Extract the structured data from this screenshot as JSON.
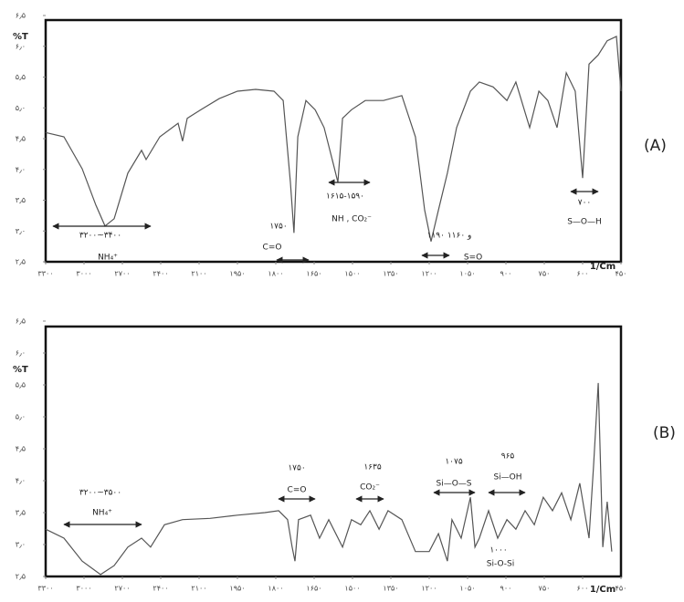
{
  "chart_data": [
    {
      "type": "line",
      "panel_label": "(A)",
      "ylabel": "%T",
      "xlabel": "1/Cm",
      "color": "#555555",
      "xlim": [
        3300,
        450
      ],
      "ylim": [
        2.5,
        6.5
      ],
      "xticks": [
        {
          "value": 3300,
          "label": "۳۳۰۰"
        },
        {
          "value": 3000,
          "label": "۳۰۰۰"
        },
        {
          "value": 2700,
          "label": "۲۷۰۰"
        },
        {
          "value": 2400,
          "label": "۲۴۰۰"
        },
        {
          "value": 2100,
          "label": "۲۱۰۰"
        },
        {
          "value": 1950,
          "label": "۱۹۵۰"
        },
        {
          "value": 1800,
          "label": "۱۸۰۰"
        },
        {
          "value": 1650,
          "label": "۱۶۵۰"
        },
        {
          "value": 1500,
          "label": "۱۵۰۰"
        },
        {
          "value": 1350,
          "label": "۱۳۵۰"
        },
        {
          "value": 1200,
          "label": "۱۲۰۰"
        },
        {
          "value": 1050,
          "label": "۱۰۵۰"
        },
        {
          "value": 900,
          "label": "۹۰۰"
        },
        {
          "value": 750,
          "label": "۷۵۰"
        },
        {
          "value": 600,
          "label": "۶۰۰"
        },
        {
          "value": 450,
          "label": "۴۵۰"
        }
      ],
      "yticks": [
        {
          "value": 6.5,
          "label": "۶٫۵"
        },
        {
          "value": 6.0,
          "label": "۶٫۰"
        },
        {
          "value": 5.5,
          "label": "۵٫۵"
        },
        {
          "value": 5.0,
          "label": "۵٫۰"
        },
        {
          "value": 4.5,
          "label": "۴٫۵"
        },
        {
          "value": 4.0,
          "label": "۴٫۰"
        },
        {
          "value": 3.5,
          "label": "۳٫۵"
        },
        {
          "value": 3.0,
          "label": "۳٫۰"
        },
        {
          "value": 2.5,
          "label": "۲٫۵"
        }
      ],
      "x": [
        3300,
        3157,
        3014,
        2907,
        2836,
        2764,
        2657,
        2550,
        2514,
        2407,
        2264,
        2229,
        2193,
        2093,
        2021,
        1950,
        1879,
        1807,
        1771,
        1743,
        1729,
        1714,
        1682,
        1646,
        1611,
        1575,
        1557,
        1539,
        1504,
        1450,
        1379,
        1307,
        1254,
        1218,
        1193,
        1164,
        1129,
        1093,
        1039,
        1004,
        950,
        896,
        861,
        807,
        771,
        736,
        700,
        664,
        629,
        600,
        575,
        539,
        504,
        468,
        450
      ],
      "values": [
        4.6,
        4.53,
        4.01,
        3.42,
        3.08,
        3.2,
        3.94,
        4.31,
        4.16,
        4.53,
        4.75,
        4.46,
        4.83,
        4.97,
        5.15,
        5.27,
        5.3,
        5.27,
        5.12,
        3.79,
        2.97,
        4.53,
        5.12,
        4.97,
        4.68,
        4.09,
        3.79,
        4.83,
        4.97,
        5.12,
        5.12,
        5.2,
        4.53,
        3.34,
        2.83,
        3.34,
        3.94,
        4.68,
        5.27,
        5.42,
        5.34,
        5.12,
        5.42,
        4.68,
        5.27,
        5.12,
        4.68,
        5.57,
        5.27,
        3.86,
        5.71,
        5.86,
        6.09,
        6.16,
        5.27
      ],
      "annotations": [
        "۳۲۰۰~۳۴۰۰",
        "NH₄⁺",
        "۱۷۵۰",
        "C=O",
        "۱۶۱۵-۱۵۹۰",
        "NH , CO₂⁻",
        "۱۱۹۰ و ۱۱۶۰",
        "S=O",
        "۷۰۰",
        "S—O—H"
      ]
    },
    {
      "type": "line",
      "panel_label": "(B)",
      "ylabel": "%T",
      "xlabel": "1/Cm",
      "color": "#555555",
      "xlim": [
        3300,
        450
      ],
      "ylim": [
        2.5,
        6.5
      ],
      "xticks": [
        {
          "value": 3300,
          "label": "۳۳۰۰"
        },
        {
          "value": 3000,
          "label": "۳۰۰۰"
        },
        {
          "value": 2700,
          "label": "۲۷۰۰"
        },
        {
          "value": 2400,
          "label": "۲۴۰۰"
        },
        {
          "value": 2100,
          "label": "۲۱۰۰"
        },
        {
          "value": 1950,
          "label": "۱۹۵۰"
        },
        {
          "value": 1800,
          "label": "۱۸۰۰"
        },
        {
          "value": 1650,
          "label": "۱۶۵۰"
        },
        {
          "value": 1500,
          "label": "۱۵۰۰"
        },
        {
          "value": 1350,
          "label": "۱۳۵۰"
        },
        {
          "value": 1200,
          "label": "۱۲۰۰"
        },
        {
          "value": 1050,
          "label": "۱۰۵۰"
        },
        {
          "value": 900,
          "label": "۹۰۰"
        },
        {
          "value": 750,
          "label": "۷۵۰"
        },
        {
          "value": 600,
          "label": "۶۰۰"
        },
        {
          "value": 450,
          "label": "۴۵۰"
        }
      ],
      "yticks": [
        {
          "value": 6.5,
          "label": "۶٫۵"
        },
        {
          "value": 6.0,
          "label": "۶٫۰"
        },
        {
          "value": 5.5,
          "label": "۵٫۵"
        },
        {
          "value": 5.0,
          "label": "۵٫۰"
        },
        {
          "value": 4.5,
          "label": "۴٫۵"
        },
        {
          "value": 4.0,
          "label": "۴٫۰"
        },
        {
          "value": 3.5,
          "label": "۳٫۵"
        },
        {
          "value": 3.0,
          "label": "۳٫۰"
        },
        {
          "value": 2.5,
          "label": "۲٫۵"
        }
      ],
      "x": [
        3300,
        3157,
        3014,
        2871,
        2764,
        2657,
        2550,
        2479,
        2371,
        2229,
        2057,
        1950,
        1843,
        1789,
        1754,
        1736,
        1725,
        1711,
        1664,
        1629,
        1593,
        1539,
        1504,
        1468,
        1432,
        1396,
        1361,
        1307,
        1254,
        1200,
        1164,
        1129,
        1111,
        1075,
        1039,
        1021,
        1004,
        968,
        932,
        896,
        861,
        825,
        789,
        754,
        718,
        682,
        646,
        611,
        575,
        557,
        539,
        521,
        504,
        486
      ],
      "values": [
        3.24,
        3.1,
        2.74,
        2.53,
        2.67,
        2.96,
        3.1,
        2.96,
        3.31,
        3.39,
        3.41,
        3.46,
        3.5,
        3.53,
        3.39,
        2.96,
        2.74,
        3.39,
        3.46,
        3.1,
        3.39,
        2.96,
        3.39,
        3.31,
        3.53,
        3.24,
        3.53,
        3.39,
        2.89,
        2.89,
        3.17,
        2.74,
        3.39,
        3.1,
        3.74,
        2.96,
        3.1,
        3.53,
        3.1,
        3.39,
        3.24,
        3.53,
        3.31,
        3.74,
        3.53,
        3.81,
        3.39,
        3.96,
        3.1,
        4.24,
        5.53,
        2.96,
        3.67,
        2.89
      ],
      "annotations": [
        "۳۲۰۰~۳۵۰۰",
        "NH₄⁺",
        "۱۷۵۰",
        "C=O",
        "۱۶۳۵",
        "CO₂⁻",
        "۱۰۷۵",
        "Si—O—S",
        "۹۶۵",
        "Si—OH",
        "۱۰۰۰",
        "Si-O-Si"
      ]
    }
  ]
}
